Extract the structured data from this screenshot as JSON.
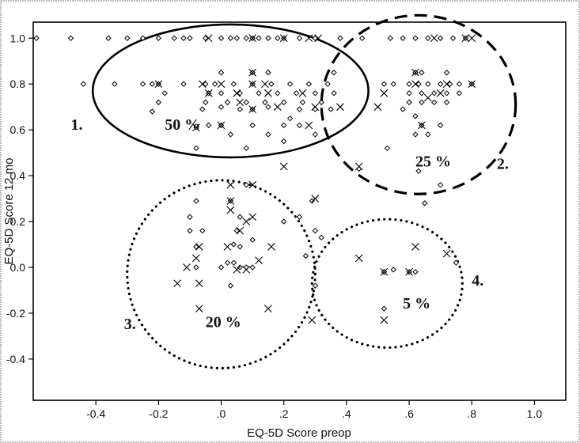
{
  "chart_data": {
    "type": "scatter",
    "xlabel": "EQ-5D Score preop",
    "ylabel": "EQ-5D Score 12 mo",
    "xlim": [
      -0.6,
      1.1
    ],
    "ylim": [
      -0.58,
      1.07
    ],
    "xticks": [
      -0.4,
      -0.2,
      0.0,
      0.2,
      0.4,
      0.6,
      0.8,
      1.0
    ],
    "xtick_labels": [
      "-0.4",
      "-0.2",
      ".0",
      ".2",
      ".4",
      ".6",
      ".8",
      "1.0"
    ],
    "yticks": [
      -0.4,
      -0.2,
      0.0,
      0.2,
      0.4,
      0.6,
      0.8,
      1.0
    ],
    "ytick_labels": [
      "-0.4",
      "-0.2",
      "0.0",
      "0.2",
      "0.4",
      "0.6",
      "0.8",
      "1.0"
    ],
    "grid": false,
    "series": [
      {
        "marker": "diamond",
        "points": [
          [
            -0.59,
            1.0
          ],
          [
            -0.48,
            1.0
          ],
          [
            -0.36,
            1.0
          ],
          [
            -0.3,
            1.0
          ],
          [
            -0.25,
            1.0
          ],
          [
            -0.2,
            1.0
          ],
          [
            -0.15,
            1.0
          ],
          [
            -0.12,
            1.0
          ],
          [
            -0.1,
            1.0
          ],
          [
            -0.05,
            1.0
          ],
          [
            0.0,
            1.0
          ],
          [
            0.03,
            1.0
          ],
          [
            0.05,
            1.0
          ],
          [
            0.08,
            1.0
          ],
          [
            0.1,
            1.0
          ],
          [
            0.12,
            1.0
          ],
          [
            0.15,
            1.0
          ],
          [
            0.18,
            1.0
          ],
          [
            0.2,
            1.0
          ],
          [
            0.25,
            1.0
          ],
          [
            0.3,
            1.0
          ],
          [
            0.38,
            1.0
          ],
          [
            0.45,
            1.0
          ],
          [
            -0.44,
            0.8
          ],
          [
            -0.34,
            0.8
          ],
          [
            -0.25,
            0.8
          ],
          [
            -0.22,
            0.8
          ],
          [
            -0.2,
            0.8
          ],
          [
            -0.18,
            0.76
          ],
          [
            -0.2,
            0.72
          ],
          [
            -0.22,
            0.68
          ],
          [
            -0.12,
            0.8
          ],
          [
            -0.05,
            0.8
          ],
          [
            -0.04,
            0.76
          ],
          [
            -0.05,
            0.72
          ],
          [
            -0.06,
            0.69
          ],
          [
            -0.02,
            0.8
          ],
          [
            0.0,
            0.76
          ],
          [
            0.02,
            0.72
          ],
          [
            0.04,
            0.8
          ],
          [
            0.06,
            0.76
          ],
          [
            0.08,
            0.72
          ],
          [
            0.1,
            0.8
          ],
          [
            0.12,
            0.76
          ],
          [
            0.14,
            0.72
          ],
          [
            0.16,
            0.8
          ],
          [
            0.18,
            0.76
          ],
          [
            0.2,
            0.72
          ],
          [
            0.22,
            0.8
          ],
          [
            0.24,
            0.76
          ],
          [
            0.26,
            0.72
          ],
          [
            0.28,
            0.8
          ],
          [
            0.3,
            0.76
          ],
          [
            0.32,
            0.72
          ],
          [
            0.34,
            0.8
          ],
          [
            0.36,
            0.76
          ],
          [
            0.25,
            0.69
          ],
          [
            0.3,
            0.69
          ],
          [
            0.35,
            0.69
          ],
          [
            0.06,
            0.69
          ],
          [
            0.1,
            0.69
          ],
          [
            -0.04,
            0.62
          ],
          [
            0.0,
            0.62
          ],
          [
            0.1,
            0.62
          ],
          [
            0.2,
            0.62
          ],
          [
            0.25,
            0.62
          ],
          [
            0.03,
            0.58
          ],
          [
            0.15,
            0.58
          ],
          [
            0.2,
            0.55
          ],
          [
            -0.08,
            0.52
          ],
          [
            0.08,
            0.52
          ],
          [
            0.0,
            0.85
          ],
          [
            0.1,
            0.85
          ],
          [
            0.15,
            0.85
          ],
          [
            0.36,
            0.85
          ],
          [
            0.0,
            0.7
          ],
          [
            0.15,
            0.7
          ],
          [
            0.22,
            0.65
          ],
          [
            0.3,
            0.58
          ],
          [
            0.54,
            1.0
          ],
          [
            0.58,
            1.0
          ],
          [
            0.62,
            1.0
          ],
          [
            0.66,
            1.0
          ],
          [
            0.7,
            1.0
          ],
          [
            0.74,
            1.0
          ],
          [
            0.78,
            1.0
          ],
          [
            0.52,
            0.8
          ],
          [
            0.55,
            0.8
          ],
          [
            0.6,
            0.8
          ],
          [
            0.63,
            0.8
          ],
          [
            0.66,
            0.8
          ],
          [
            0.7,
            0.8
          ],
          [
            0.73,
            0.8
          ],
          [
            0.76,
            0.8
          ],
          [
            0.8,
            0.8
          ],
          [
            0.6,
            0.76
          ],
          [
            0.64,
            0.76
          ],
          [
            0.68,
            0.76
          ],
          [
            0.72,
            0.76
          ],
          [
            0.76,
            0.76
          ],
          [
            0.6,
            0.72
          ],
          [
            0.64,
            0.72
          ],
          [
            0.68,
            0.72
          ],
          [
            0.72,
            0.72
          ],
          [
            0.62,
            0.85
          ],
          [
            0.64,
            0.85
          ],
          [
            0.72,
            0.85
          ],
          [
            0.58,
            0.69
          ],
          [
            0.62,
            0.66
          ],
          [
            0.64,
            0.62
          ],
          [
            0.62,
            0.58
          ],
          [
            0.66,
            0.58
          ],
          [
            0.7,
            0.62
          ],
          [
            0.53,
            0.52
          ],
          [
            0.7,
            0.36
          ],
          [
            0.65,
            0.28
          ],
          [
            0.63,
            0.42
          ],
          [
            -0.08,
            0.29
          ],
          [
            -0.1,
            0.22
          ],
          [
            -0.1,
            0.16
          ],
          [
            -0.06,
            0.16
          ],
          [
            -0.08,
            0.09
          ],
          [
            -0.08,
            0.0
          ],
          [
            0.0,
            0.0
          ],
          [
            0.02,
            0.02
          ],
          [
            0.04,
            0.02
          ],
          [
            0.06,
            0.0
          ],
          [
            0.08,
            0.0
          ],
          [
            0.03,
            -0.08
          ],
          [
            0.04,
            0.1
          ],
          [
            0.06,
            0.09
          ],
          [
            0.05,
            0.16
          ],
          [
            0.06,
            0.22
          ],
          [
            0.03,
            0.29
          ],
          [
            0.1,
            0.12
          ],
          [
            0.08,
            0.36
          ],
          [
            0.2,
            0.2
          ],
          [
            0.25,
            0.22
          ],
          [
            0.29,
            0.29
          ],
          [
            0.3,
            0.16
          ],
          [
            0.27,
            0.05
          ],
          [
            0.3,
            -0.08
          ],
          [
            0.1,
            0.0
          ],
          [
            0.32,
            0.13
          ],
          [
            0.44,
            0.43
          ],
          [
            0.6,
            -0.02
          ],
          [
            0.62,
            -0.02
          ],
          [
            0.52,
            -0.02
          ],
          [
            0.52,
            -0.18
          ],
          [
            0.75,
            0.02
          ],
          [
            0.52,
            -0.02
          ],
          [
            0.55,
            -0.01
          ]
        ]
      },
      {
        "marker": "x",
        "points": [
          [
            -0.04,
            1.0
          ],
          [
            0.1,
            1.0
          ],
          [
            0.2,
            1.0
          ],
          [
            0.28,
            1.0
          ],
          [
            0.31,
            1.0
          ],
          [
            0.68,
            1.0
          ],
          [
            0.78,
            1.0
          ],
          [
            0.8,
            1.0
          ],
          [
            -0.2,
            0.8
          ],
          [
            -0.06,
            0.8
          ],
          [
            0.0,
            0.8
          ],
          [
            0.1,
            0.8
          ],
          [
            0.14,
            0.8
          ],
          [
            -0.04,
            0.76
          ],
          [
            0.05,
            0.76
          ],
          [
            0.15,
            0.76
          ],
          [
            0.26,
            0.76
          ],
          [
            0.06,
            0.72
          ],
          [
            0.18,
            0.7
          ],
          [
            0.3,
            0.7
          ],
          [
            0.38,
            0.7
          ],
          [
            0.1,
            0.85
          ],
          [
            0.1,
            0.69
          ],
          [
            0.28,
            0.62
          ],
          [
            -0.08,
            0.61
          ],
          [
            0.0,
            0.62
          ],
          [
            0.5,
            0.7
          ],
          [
            0.52,
            0.76
          ],
          [
            0.62,
            0.8
          ],
          [
            0.72,
            0.8
          ],
          [
            0.8,
            0.8
          ],
          [
            0.66,
            0.74
          ],
          [
            0.7,
            0.76
          ],
          [
            0.64,
            0.62
          ],
          [
            0.62,
            0.85
          ],
          [
            0.03,
            0.36
          ],
          [
            0.1,
            0.36
          ],
          [
            0.2,
            0.44
          ],
          [
            0.3,
            0.3
          ],
          [
            0.44,
            0.44
          ],
          [
            0.03,
            0.29
          ],
          [
            0.03,
            0.25
          ],
          [
            0.08,
            0.2
          ],
          [
            0.06,
            0.16
          ],
          [
            0.1,
            0.22
          ],
          [
            -0.07,
            0.09
          ],
          [
            -0.08,
            0.04
          ],
          [
            -0.11,
            0.0
          ],
          [
            -0.14,
            -0.07
          ],
          [
            -0.07,
            -0.07
          ],
          [
            -0.07,
            -0.18
          ],
          [
            0.02,
            0.09
          ],
          [
            0.05,
            -0.01
          ],
          [
            0.08,
            -0.01
          ],
          [
            0.12,
            0.03
          ],
          [
            0.16,
            0.09
          ],
          [
            0.15,
            -0.18
          ],
          [
            0.29,
            -0.23
          ],
          [
            0.44,
            0.04
          ],
          [
            0.52,
            -0.02
          ],
          [
            0.52,
            -0.23
          ],
          [
            0.6,
            -0.02
          ],
          [
            0.62,
            0.09
          ],
          [
            0.72,
            0.06
          ]
        ]
      }
    ],
    "annotations": [
      {
        "text": "1.",
        "x": -0.48,
        "y": 0.6
      },
      {
        "text": "50 %",
        "x": -0.18,
        "y": 0.6
      },
      {
        "text": "2.",
        "x": 0.88,
        "y": 0.43
      },
      {
        "text": "25 %",
        "x": 0.62,
        "y": 0.44
      },
      {
        "text": "3.",
        "x": -0.31,
        "y": -0.27
      },
      {
        "text": "20 %",
        "x": -0.05,
        "y": -0.26
      },
      {
        "text": "4.",
        "x": 0.8,
        "y": -0.08
      },
      {
        "text": "5 %",
        "x": 0.58,
        "y": -0.18
      }
    ],
    "regions": [
      {
        "style": "solid",
        "cx": 0.03,
        "cy": 0.77,
        "rx": 0.44,
        "ry": 0.29
      },
      {
        "style": "dashed",
        "cx": 0.63,
        "cy": 0.71,
        "rx": 0.31,
        "ry": 0.39
      },
      {
        "style": "dotted",
        "cx": 0.0,
        "cy": -0.03,
        "rx": 0.3,
        "ry": 0.41
      },
      {
        "style": "dotted",
        "cx": 0.53,
        "cy": -0.07,
        "rx": 0.24,
        "ry": 0.28
      }
    ]
  }
}
